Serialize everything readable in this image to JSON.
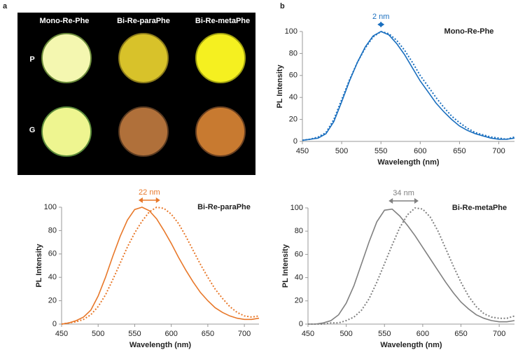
{
  "panel_labels": [
    "a",
    "b"
  ],
  "photo": {
    "columns": [
      "Mono-Re-Phe",
      "Bi-Re-paraPhe",
      "Bi-Re-metaPhe"
    ],
    "rows": [
      "P",
      "G"
    ]
  },
  "chart_data": [
    {
      "type": "line",
      "title": "Mono-Re-Phe",
      "annotation": {
        "text": "2 nm",
        "color": "#1a6fbf"
      },
      "x_label": "Wavelength (nm)",
      "y_label": "PL Intensity",
      "x": [
        450,
        460,
        470,
        480,
        490,
        500,
        510,
        520,
        530,
        540,
        550,
        560,
        570,
        580,
        590,
        600,
        610,
        620,
        630,
        640,
        650,
        660,
        670,
        680,
        690,
        700,
        710,
        720
      ],
      "series": [
        {
          "color": "#1a6fbf",
          "style": "solid",
          "values": [
            1,
            2,
            3,
            7,
            18,
            36,
            55,
            72,
            86,
            96,
            100,
            97,
            89,
            79,
            67,
            55,
            45,
            35,
            27,
            20,
            14,
            10,
            7,
            5,
            3,
            2,
            2,
            3
          ]
        },
        {
          "color": "#1a6fbf",
          "style": "dotted",
          "values": [
            1,
            2,
            4,
            8,
            20,
            38,
            56,
            72,
            85,
            95,
            100,
            98,
            92,
            83,
            72,
            60,
            50,
            40,
            31,
            23,
            17,
            12,
            8,
            6,
            4,
            3,
            2,
            4
          ]
        }
      ],
      "xlim": [
        450,
        720
      ],
      "ylim": [
        0,
        100
      ],
      "xticks": [
        450,
        500,
        550,
        600,
        650,
        700
      ],
      "yticks": [
        0,
        20,
        40,
        60,
        80,
        100
      ]
    },
    {
      "type": "line",
      "title": "Bi-Re-paraPhe",
      "annotation": {
        "text": "22 nm",
        "color": "#e8782a"
      },
      "x_label": "Wavelength (nm)",
      "y_label": "PL Intensity",
      "x": [
        450,
        460,
        470,
        480,
        490,
        500,
        510,
        520,
        530,
        540,
        550,
        560,
        570,
        580,
        590,
        600,
        610,
        620,
        630,
        640,
        650,
        660,
        670,
        680,
        690,
        700,
        710,
        720
      ],
      "series": [
        {
          "color": "#e8782a",
          "style": "solid",
          "values": [
            0,
            1,
            3,
            6,
            12,
            24,
            40,
            58,
            75,
            89,
            98,
            100,
            97,
            90,
            80,
            69,
            57,
            46,
            36,
            27,
            20,
            14,
            10,
            7,
            5,
            4,
            4,
            5
          ]
        },
        {
          "color": "#e8782a",
          "style": "dotted",
          "values": [
            0,
            1,
            2,
            4,
            8,
            15,
            25,
            38,
            52,
            66,
            78,
            88,
            96,
            100,
            99,
            94,
            86,
            75,
            63,
            51,
            40,
            30,
            22,
            15,
            10,
            7,
            6,
            7
          ]
        }
      ],
      "xlim": [
        450,
        720
      ],
      "ylim": [
        0,
        100
      ],
      "xticks": [
        450,
        500,
        550,
        600,
        650,
        700
      ],
      "yticks": [
        0,
        20,
        40,
        60,
        80,
        100
      ]
    },
    {
      "type": "line",
      "title": "Bi-Re-metaPhe",
      "annotation": {
        "text": "34 nm",
        "color": "#808080"
      },
      "x_label": "Wavelength (nm)",
      "y_label": "PL Intensity",
      "x": [
        450,
        460,
        470,
        480,
        490,
        500,
        510,
        520,
        530,
        540,
        550,
        560,
        570,
        580,
        590,
        600,
        610,
        620,
        630,
        640,
        650,
        660,
        670,
        680,
        690,
        700,
        710,
        720
      ],
      "series": [
        {
          "color": "#808080",
          "style": "solid",
          "values": [
            0,
            0,
            1,
            3,
            8,
            18,
            33,
            52,
            71,
            88,
            98,
            99,
            93,
            85,
            76,
            66,
            56,
            46,
            36,
            27,
            19,
            13,
            8,
            5,
            3,
            2,
            2,
            3
          ]
        },
        {
          "color": "#808080",
          "style": "dotted",
          "values": [
            0,
            0,
            0,
            1,
            1,
            3,
            6,
            12,
            22,
            36,
            52,
            68,
            83,
            94,
            100,
            99,
            92,
            80,
            65,
            50,
            36,
            24,
            15,
            9,
            6,
            5,
            5,
            7
          ]
        }
      ],
      "xlim": [
        450,
        720
      ],
      "ylim": [
        0,
        100
      ],
      "xticks": [
        450,
        500,
        550,
        600,
        650,
        700
      ],
      "yticks": [
        0,
        20,
        40,
        60,
        80,
        100
      ]
    }
  ]
}
